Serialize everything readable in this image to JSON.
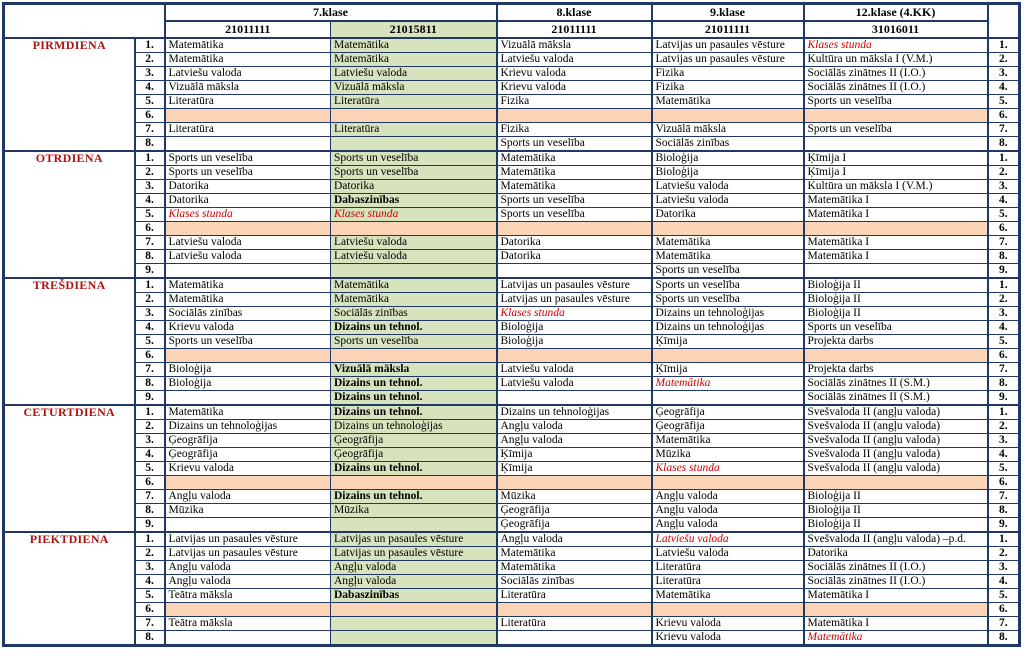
{
  "colors": {
    "border_navy": "#1F3864",
    "green_column": "#D6E3BC",
    "break_orange": "#FBD5B5",
    "day_label_red": "#B01111",
    "highlight_red": "#CC0000"
  },
  "header": {
    "class_groups": [
      "7.klase",
      "8.klase",
      "9.klase",
      "12.klase (4.KK)"
    ],
    "codes": [
      "21011111",
      "21015811",
      "21011111",
      "21011111",
      "31016011"
    ]
  },
  "days": [
    {
      "name": "PIRMDIENA",
      "rows": [
        {
          "num": "1.",
          "cells": [
            "Matemātika",
            "Matemātika",
            "Vizuālā māksla",
            "Latvijas un pasaules vēsture",
            {
              "t": "Klases stunda",
              "s": "r"
            }
          ]
        },
        {
          "num": "2.",
          "cells": [
            "Matemātika",
            "Matemātika",
            "Latviešu valoda",
            "Latvijas un pasaules vēsture",
            "Kultūra un māksla I (V.M.)"
          ]
        },
        {
          "num": "3.",
          "cells": [
            "Latviešu valoda",
            "Latviešu valoda",
            "Krievu valoda",
            "Fizika",
            "Sociālās zinātnes II (I.O.)"
          ]
        },
        {
          "num": "4.",
          "cells": [
            "Vizuālā māksla",
            "Vizuālā māksla",
            "Krievu valoda",
            "Fizika",
            "Sociālās zinātnes II (I.O.)"
          ]
        },
        {
          "num": "5.",
          "cells": [
            "Literatūra",
            "Literatūra",
            "Fizika",
            "Matemātika",
            "Sports un veselība"
          ]
        },
        {
          "num": "6.",
          "break": true,
          "cells": [
            "",
            "",
            "",
            "",
            ""
          ]
        },
        {
          "num": "7.",
          "cells": [
            "Literatūra",
            "Literatūra",
            "Fizika",
            "Vizuālā māksla",
            "Sports un veselība"
          ]
        },
        {
          "num": "8.",
          "cells": [
            "",
            "",
            "Sports un veselība",
            "Sociālās zinības",
            ""
          ]
        }
      ]
    },
    {
      "name": "OTRDIENA",
      "rows": [
        {
          "num": "1.",
          "cells": [
            "Sports un veselība",
            "Sports un veselība",
            "Matemātika",
            "Bioloģija",
            "Ķīmija I"
          ]
        },
        {
          "num": "2.",
          "cells": [
            "Sports un veselība",
            "Sports un veselība",
            "Matemātika",
            "Bioloģija",
            "Ķīmija I"
          ]
        },
        {
          "num": "3.",
          "cells": [
            "Datorika",
            "Datorika",
            "Matemātika",
            "Latviešu valoda",
            "Kultūra un māksla I (V.M.)"
          ]
        },
        {
          "num": "4.",
          "cells": [
            "Datorika",
            {
              "t": "Dabaszinības",
              "s": "b"
            },
            "Sports un veselība",
            "Latviešu valoda",
            "Matemātika I"
          ]
        },
        {
          "num": "5.",
          "cells": [
            {
              "t": "Klases stunda",
              "s": "r"
            },
            {
              "t": "Klases stunda",
              "s": "r"
            },
            "Sports un veselība",
            "Datorika",
            "Matemātika I"
          ]
        },
        {
          "num": "6.",
          "break": true,
          "cells": [
            "",
            "",
            "",
            "",
            ""
          ]
        },
        {
          "num": "7.",
          "cells": [
            "Latviešu valoda",
            "Latviešu valoda",
            "Datorika",
            "Matemātika",
            "Matemātika I"
          ]
        },
        {
          "num": "8.",
          "cells": [
            "Latviešu valoda",
            "Latviešu valoda",
            "Datorika",
            "Matemātika",
            "Matemātika I"
          ]
        },
        {
          "num": "9.",
          "cells": [
            "",
            "",
            "",
            "Sports un veselība",
            ""
          ]
        }
      ]
    },
    {
      "name": "TREŠDIENA",
      "rows": [
        {
          "num": "1.",
          "cells": [
            "Matemātika",
            "Matemātika",
            "Latvijas un pasaules vēsture",
            "Sports un veselība",
            "Bioloģija II"
          ]
        },
        {
          "num": "2.",
          "cells": [
            "Matemātika",
            "Matemātika",
            "Latvijas un pasaules vēsture",
            "Sports un veselība",
            "Bioloģija II"
          ]
        },
        {
          "num": "3.",
          "cells": [
            "Sociālās zinības",
            "Sociālās zinības",
            {
              "t": "Klases stunda",
              "s": "r"
            },
            "Dizains un tehnoloģijas",
            "Bioloģija II"
          ]
        },
        {
          "num": "4.",
          "cells": [
            "Krievu valoda",
            {
              "t": "Dizains un tehnol.",
              "s": "b"
            },
            "Bioloģija",
            "Dizains un tehnoloģijas",
            "Sports un veselība"
          ]
        },
        {
          "num": "5.",
          "cells": [
            "Sports un veselība",
            "Sports un veselība",
            "Bioloģija",
            "Ķīmija",
            "Projekta darbs"
          ]
        },
        {
          "num": "6.",
          "break": true,
          "cells": [
            "",
            "",
            "",
            "",
            ""
          ]
        },
        {
          "num": "7.",
          "cells": [
            "Bioloģija",
            {
              "t": "Vizuālā māksla",
              "s": "b"
            },
            "Latviešu valoda",
            "Ķīmija",
            "Projekta darbs"
          ]
        },
        {
          "num": "8.",
          "cells": [
            "Bioloģija",
            {
              "t": "Dizains un tehnol.",
              "s": "b"
            },
            "Latviešu valoda",
            {
              "t": "Matemātika",
              "s": "r"
            },
            "Sociālās zinātnes II (S.M.)"
          ]
        },
        {
          "num": "9.",
          "cells": [
            "",
            {
              "t": "Dizains un tehnol.",
              "s": "b"
            },
            "",
            "",
            "Sociālās zinātnes II (S.M.)"
          ]
        }
      ]
    },
    {
      "name": "CETURTDIENA",
      "rows": [
        {
          "num": "1.",
          "cells": [
            "Matemātika",
            {
              "t": "Dizains un tehnol.",
              "s": "b"
            },
            "Dizains un tehnoloģijas",
            "Ģeogrāfija",
            "Svešvaloda II (angļu valoda)"
          ]
        },
        {
          "num": "2.",
          "cells": [
            "Dizains un tehnoloģijas",
            "Dizains un tehnoloģijas",
            "Angļu valoda",
            "Ģeogrāfija",
            "Svešvaloda II (angļu valoda)"
          ]
        },
        {
          "num": "3.",
          "cells": [
            "Ģeogrāfija",
            "Ģeogrāfija",
            "Angļu valoda",
            "Matemātika",
            "Svešvaloda II (angļu valoda)"
          ]
        },
        {
          "num": "4.",
          "cells": [
            "Ģeogrāfija",
            "Ģeogrāfija",
            "Ķīmija",
            "Mūzika",
            "Svešvaloda II (angļu valoda)"
          ]
        },
        {
          "num": "5.",
          "cells": [
            "Krievu valoda",
            {
              "t": "Dizains un tehnol.",
              "s": "b"
            },
            "Ķīmija",
            {
              "t": "Klases stunda",
              "s": "r"
            },
            "Svešvaloda II (angļu valoda)"
          ]
        },
        {
          "num": "6.",
          "break": true,
          "cells": [
            "",
            "",
            "",
            "",
            ""
          ]
        },
        {
          "num": "7.",
          "cells": [
            "Angļu valoda",
            {
              "t": "Dizains un tehnol.",
              "s": "b"
            },
            "Mūzika",
            "Angļu valoda",
            "Bioloģija II"
          ]
        },
        {
          "num": "8.",
          "cells": [
            "Mūzika",
            "Mūzika",
            "Ģeogrāfija",
            "Angļu valoda",
            "Bioloģija II"
          ]
        },
        {
          "num": "9.",
          "cells": [
            "",
            "",
            "Ģeogrāfija",
            "Angļu valoda",
            "Bioloģija II"
          ]
        }
      ]
    },
    {
      "name": "PIEKTDIENA",
      "rows": [
        {
          "num": "1.",
          "cells": [
            "Latvijas un pasaules vēsture",
            "Latvijas un pasaules vēsture",
            "Angļu valoda",
            {
              "t": "Latviešu valoda",
              "s": "r"
            },
            "Svešvaloda II (angļu valoda) –p.d."
          ]
        },
        {
          "num": "2.",
          "cells": [
            "Latvijas un pasaules vēsture",
            "Latvijas un pasaules vēsture",
            "Matemātika",
            "Latviešu valoda",
            "Datorika"
          ]
        },
        {
          "num": "3.",
          "cells": [
            "Angļu valoda",
            "Angļu valoda",
            "Matemātika",
            "Literatūra",
            "Sociālās zinātnes II (I.O.)"
          ]
        },
        {
          "num": "4.",
          "cells": [
            "Angļu valoda",
            "Angļu valoda",
            "Sociālās zinības",
            "Literatūra",
            "Sociālās zinātnes II (I.O.)"
          ]
        },
        {
          "num": "5.",
          "cells": [
            "Teātra māksla",
            {
              "t": "Dabaszinības",
              "s": "b"
            },
            "Literatūra",
            "Matemātika",
            "Matemātika I"
          ]
        },
        {
          "num": "6.",
          "break": true,
          "cells": [
            "",
            "",
            "",
            "",
            ""
          ]
        },
        {
          "num": "7.",
          "cells": [
            "Teātra māksla",
            "",
            "Literatūra",
            "Krievu valoda",
            "Matemātika I"
          ]
        },
        {
          "num": "8.",
          "cells": [
            "",
            "",
            "",
            "Krievu valoda",
            {
              "t": "Matemātika",
              "s": "r"
            }
          ]
        }
      ]
    }
  ]
}
